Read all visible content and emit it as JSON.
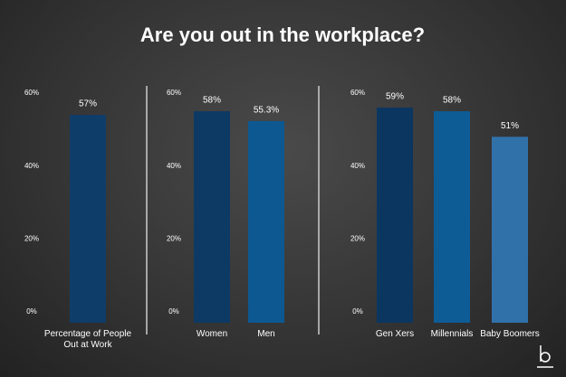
{
  "title": "Are you out in the workplace?",
  "chart_data": [
    {
      "type": "bar",
      "categories": [
        "Percentage of People Out at Work"
      ],
      "values": [
        57
      ],
      "value_labels": [
        "57%"
      ],
      "colors": [
        "#0e3d6a"
      ],
      "ylim": [
        0,
        60
      ],
      "yticks": [
        {
          "value": 0,
          "label": "0%"
        },
        {
          "value": 20,
          "label": "20%"
        },
        {
          "value": 40,
          "label": "40%"
        },
        {
          "value": 60,
          "label": "60%"
        }
      ]
    },
    {
      "type": "bar",
      "categories": [
        "Women",
        "Men"
      ],
      "values": [
        58,
        55.3
      ],
      "value_labels": [
        "58%",
        "55.3%"
      ],
      "colors": [
        "#0c3a64",
        "#0d5891"
      ],
      "ylim": [
        0,
        60
      ],
      "yticks": [
        {
          "value": 0,
          "label": "0%"
        },
        {
          "value": 20,
          "label": "20%"
        },
        {
          "value": 40,
          "label": "40%"
        },
        {
          "value": 60,
          "label": "60%"
        }
      ]
    },
    {
      "type": "bar",
      "categories": [
        "Gen Xers",
        "Millennials",
        "Baby Boomers"
      ],
      "values": [
        59,
        58,
        51
      ],
      "value_labels": [
        "59%",
        "58%",
        "51%"
      ],
      "colors": [
        "#0b3660",
        "#0d5c96",
        "#3171aa"
      ],
      "ylim": [
        0,
        60
      ],
      "yticks": [
        {
          "value": 0,
          "label": "0%"
        },
        {
          "value": 20,
          "label": "20%"
        },
        {
          "value": 40,
          "label": "40%"
        },
        {
          "value": 60,
          "label": "60%"
        }
      ]
    }
  ]
}
